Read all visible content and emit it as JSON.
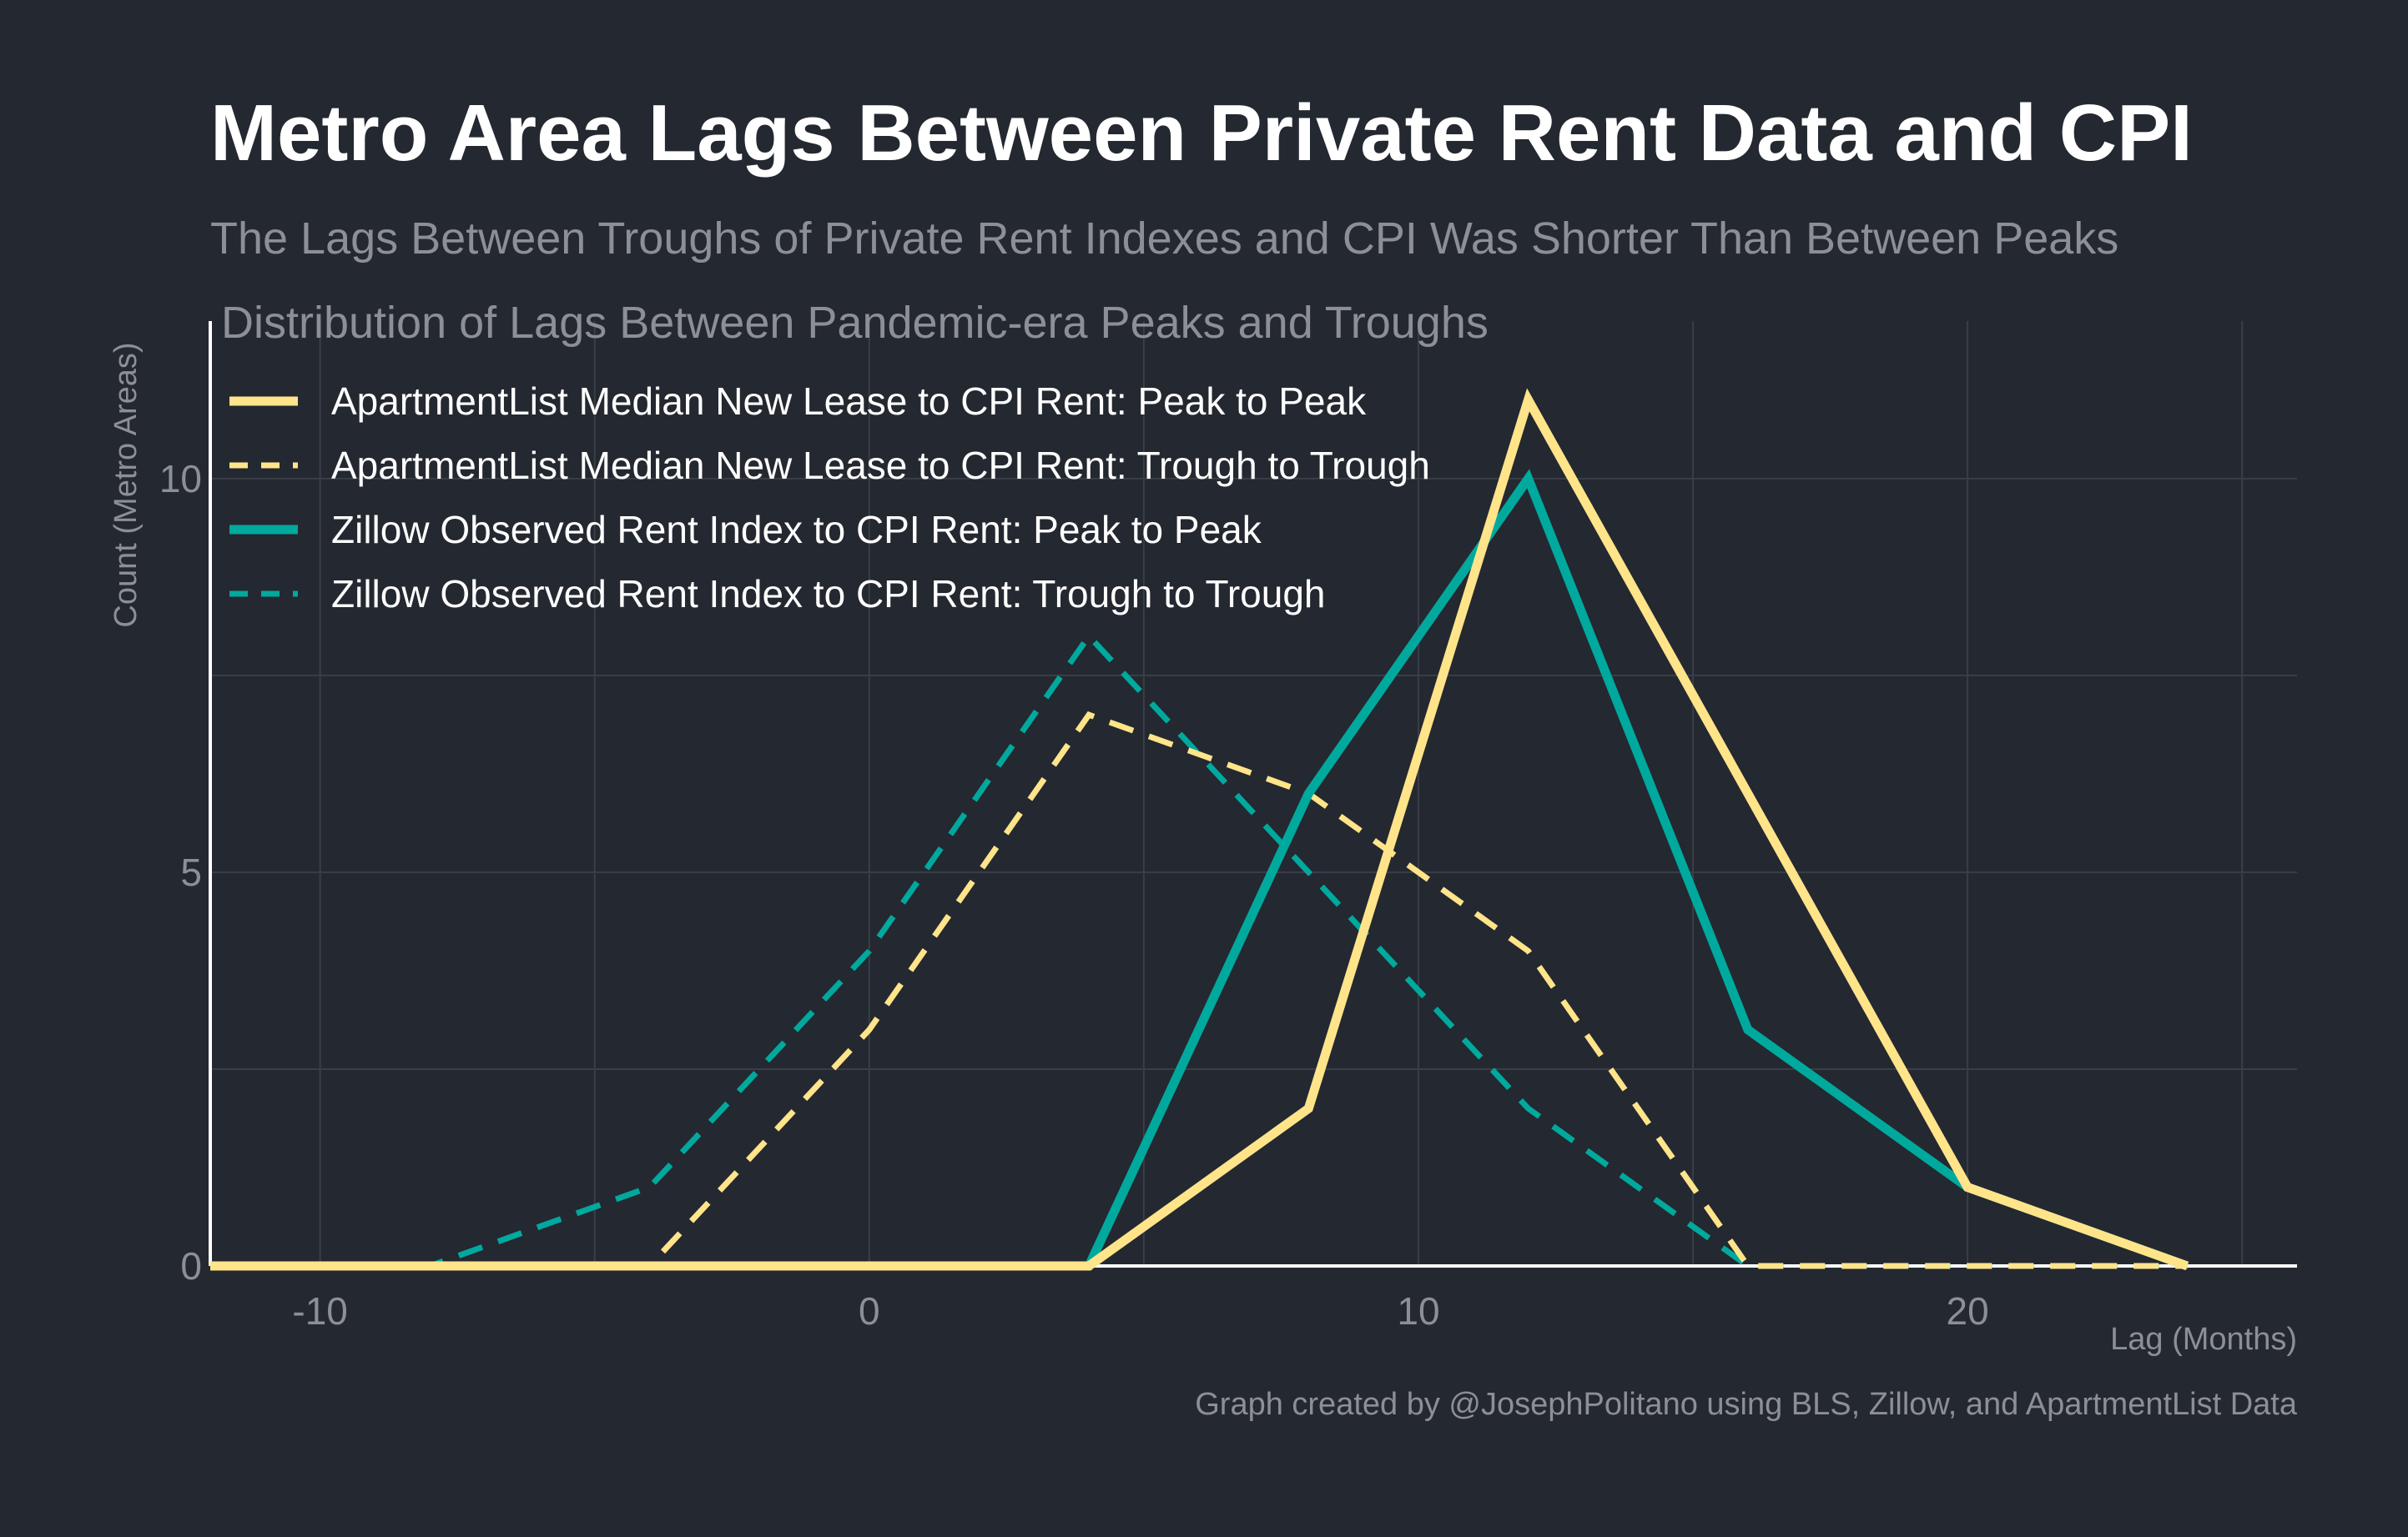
{
  "title": "Metro Area Lags Between Private Rent Data and CPI",
  "subtitle": "The Lags Between Troughs of Private Rent Indexes and CPI Was Shorter Than Between Peaks",
  "credit": "Graph created by @JosephPolitano using BLS, Zillow, and ApartmentList Data",
  "colors": {
    "background": "#242830",
    "apartmentlist": "#ffe48a",
    "zillow": "#00a99d",
    "grid": "#3a3e46",
    "axis_text": "#8c8f96"
  },
  "chart_data": {
    "type": "line",
    "title": "Distribution of Lags Between Pandemic-era Peaks and Troughs",
    "xlabel": "Lag (Months)",
    "ylabel": "Count (Metro Areas)",
    "xlim": [
      -12,
      26
    ],
    "ylim": [
      0,
      12
    ],
    "x_ticks": [
      -10,
      0,
      10,
      20
    ],
    "y_ticks": [
      0,
      5,
      10
    ],
    "grid": true,
    "legend": "top-left",
    "series": [
      {
        "name": "ApartmentList Median New Lease to CPI Rent: Peak to Peak",
        "color": "#ffe48a",
        "dash": "solid",
        "x": [
          -12,
          -8,
          -4,
          0,
          4,
          8,
          12,
          16,
          20,
          24
        ],
        "y": [
          0,
          0,
          0,
          0,
          0,
          2,
          11,
          6,
          1,
          0
        ]
      },
      {
        "name": "ApartmentList Median New Lease to CPI Rent: Trough to Trough",
        "color": "#ffe48a",
        "dash": "dashed",
        "x": [
          -12,
          -8,
          -4,
          0,
          4,
          8,
          12,
          16,
          20,
          24
        ],
        "y": [
          0,
          0,
          0,
          3,
          7,
          6,
          4,
          0,
          0,
          0
        ]
      },
      {
        "name": "Zillow Observed Rent Index to CPI Rent: Peak to Peak",
        "color": "#00a99d",
        "dash": "solid",
        "x": [
          -12,
          -8,
          -4,
          0,
          4,
          8,
          12,
          16,
          20,
          24
        ],
        "y": [
          0,
          0,
          0,
          0,
          0,
          6,
          10,
          3,
          1,
          0
        ]
      },
      {
        "name": "Zillow Observed Rent Index to CPI Rent: Trough to Trough",
        "color": "#00a99d",
        "dash": "dashed",
        "x": [
          -12,
          -8,
          -4,
          0,
          4,
          8,
          12,
          16,
          20,
          24
        ],
        "y": [
          0,
          0,
          1,
          4,
          8,
          5,
          2,
          0,
          0,
          0
        ]
      }
    ]
  }
}
